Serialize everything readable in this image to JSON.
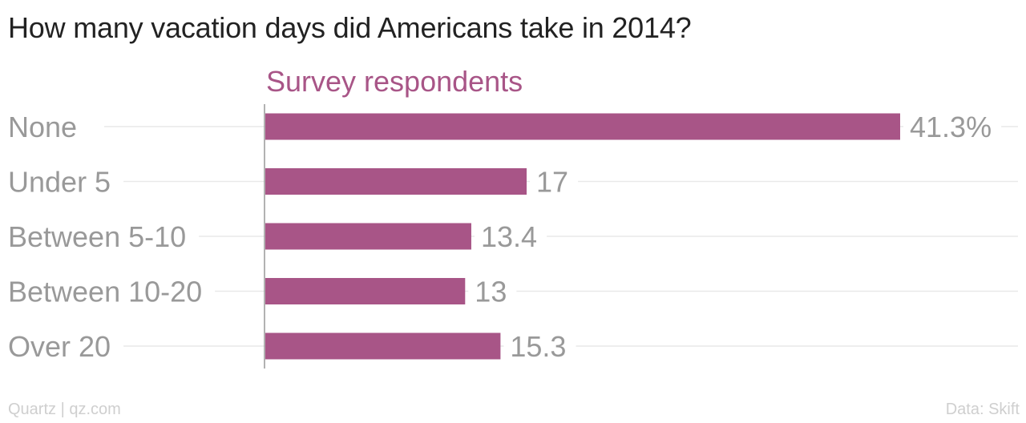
{
  "title": "How many vacation days did Americans take in 2014?",
  "footer": {
    "source_left": "Quartz | qz.com",
    "source_right": "Data: Skift"
  },
  "colors": {
    "bar": "#a85587",
    "series_label": "#a85587",
    "category_label": "#999999",
    "value_label": "#999999",
    "gridline": "#e9e9e9",
    "axis": "#999999",
    "title": "#222222",
    "footer": "#cfcfcf"
  },
  "chart_data": {
    "type": "bar",
    "orientation": "horizontal",
    "title": "How many vacation days did Americans take in 2014?",
    "series": [
      {
        "name": "Survey respondents",
        "values": [
          41.3,
          17,
          13.4,
          13,
          15.3
        ],
        "value_labels": [
          "41.3%",
          "17",
          "13.4",
          "13",
          "15.3"
        ]
      }
    ],
    "categories": [
      "None",
      "Under 5",
      "Between 5-10",
      "Between 10-20",
      "Over 20"
    ],
    "xlim": [
      0,
      41.3
    ],
    "grid": true,
    "legend": "none"
  }
}
